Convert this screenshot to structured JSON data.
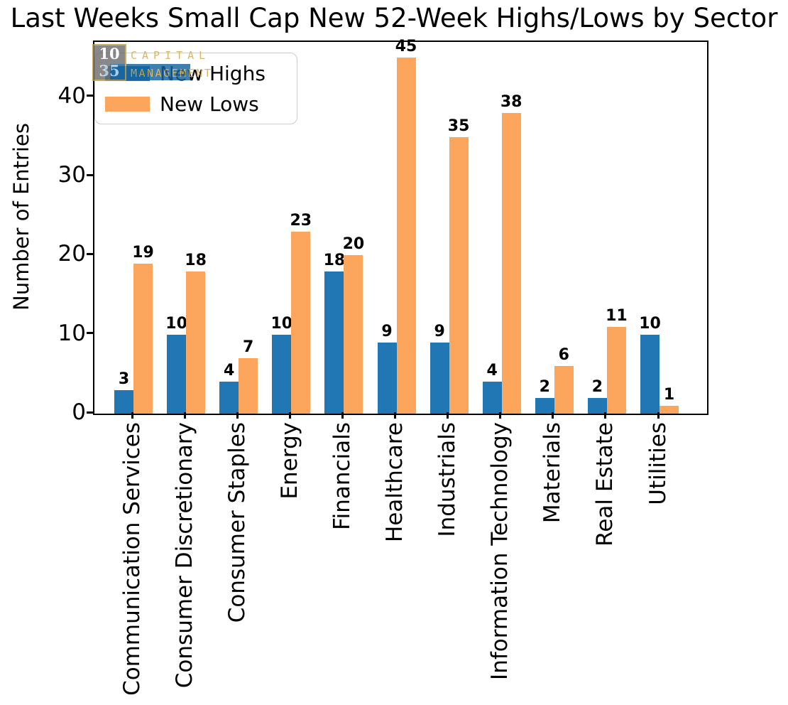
{
  "title": "Last Weeks Small Cap New 52-Week Highs/Lows by Sector",
  "watermark": {
    "number_top": "10",
    "number_bottom": "35",
    "text_top": "CAPITAL",
    "text_bottom": "MANAGEMENT",
    "gold_color": "#d4a843",
    "gray_color": "#6f6f6f",
    "navy_color": "#16639f"
  },
  "chart_data": {
    "type": "bar",
    "title": "Last Weeks Small Cap New 52-Week Highs/Lows by Sector",
    "xlabel": "",
    "ylabel": "Number of Entries",
    "categories": [
      "Communication Services",
      "Consumer Discretionary",
      "Consumer Staples",
      "Energy",
      "Financials",
      "Healthcare",
      "Industrials",
      "Information Technology",
      "Materials",
      "Real Estate",
      "Utilities"
    ],
    "series": [
      {
        "name": "New Highs",
        "color": "#2077b4",
        "values": [
          3,
          10,
          4,
          10,
          18,
          9,
          9,
          4,
          2,
          2,
          10
        ]
      },
      {
        "name": "New Lows",
        "color": "#fca65d",
        "values": [
          19,
          18,
          7,
          23,
          20,
          45,
          35,
          38,
          6,
          11,
          1
        ]
      }
    ],
    "yticks": [
      0,
      10,
      20,
      30,
      40
    ],
    "ylim": [
      0,
      47
    ],
    "grid": false,
    "legend_position": "upper left",
    "bar_labels": true
  }
}
